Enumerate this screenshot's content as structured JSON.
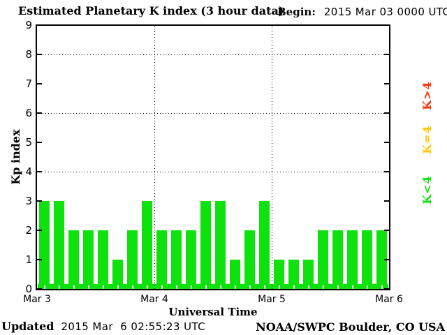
{
  "header": {
    "title": "Estimated Planetary K index (3 hour data)",
    "begin_label": "Begin:",
    "begin_value": "2015 Mar 03 0000 UTC"
  },
  "axes": {
    "y_title": "Kp index",
    "x_title": "Universal Time"
  },
  "chart_data": {
    "type": "bar",
    "title": "Estimated Planetary K index (3 hour data)",
    "begin": "2015 Mar 03 0000 UTC",
    "xlabel": "Universal Time",
    "ylabel": "Kp index",
    "ylim": [
      0,
      9
    ],
    "yticks": [
      0,
      1,
      2,
      3,
      4,
      5,
      6,
      7,
      8,
      9
    ],
    "dotted_hlines_at": [
      4,
      6,
      8
    ],
    "x_tick_labels": [
      "Mar 3",
      "Mar 4",
      "Mar 5",
      "Mar 6"
    ],
    "interval_hours": 3,
    "bars_per_day": 8,
    "values": [
      3,
      3,
      2,
      2,
      2,
      1,
      2,
      3,
      2,
      2,
      2,
      3,
      3,
      1,
      2,
      3,
      1,
      1,
      1,
      2,
      2,
      2,
      2,
      2
    ],
    "legend_position": "right-rotated",
    "color_rule": {
      "K<4": "#0de20d",
      "K=4": "#ffc800",
      "K>4": "#ff3000"
    },
    "grid": "dotted horizontal at Kp 4,6,8; dotted vertical at day boundaries"
  },
  "legend": [
    {
      "label": "K>4",
      "color": "#ff3000"
    },
    {
      "label": "K=4",
      "color": "#ffc800"
    },
    {
      "label": "K<4",
      "color": "#0de20d"
    }
  ],
  "footer": {
    "updated_label": "Updated",
    "updated_value": "2015 Mar  6 02:55:23 UTC",
    "credit": "NOAA/SWPC Boulder, CO USA"
  },
  "colors": {
    "bar_green": "#0de20d",
    "legend_yellow": "#ffc800",
    "legend_red": "#ff3000",
    "axis_black": "#000000",
    "background": "#ffffff"
  }
}
